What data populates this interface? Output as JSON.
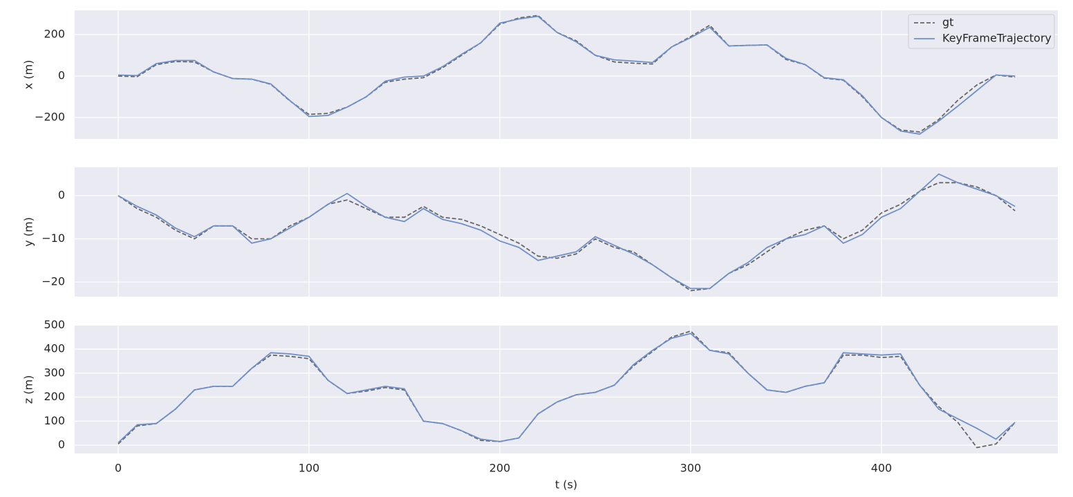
{
  "chart_data": [
    {
      "type": "line",
      "ylabel": "x (m)",
      "x": [
        0,
        10,
        20,
        30,
        40,
        50,
        60,
        70,
        80,
        90,
        100,
        110,
        120,
        130,
        140,
        150,
        160,
        170,
        180,
        190,
        200,
        210,
        220,
        230,
        240,
        250,
        260,
        270,
        280,
        290,
        300,
        310,
        320,
        330,
        340,
        350,
        360,
        370,
        380,
        390,
        400,
        410,
        420,
        430,
        440,
        450,
        460,
        470
      ],
      "series": [
        {
          "name": "gt",
          "color": "#666666",
          "linestyle": "dashed",
          "values": [
            0,
            -3,
            55,
            70,
            68,
            20,
            -12,
            -15,
            -40,
            -120,
            -185,
            -180,
            -150,
            -100,
            -30,
            -15,
            -8,
            40,
            100,
            160,
            250,
            280,
            292,
            210,
            170,
            100,
            68,
            62,
            58,
            140,
            190,
            245,
            145,
            148,
            150,
            80,
            55,
            -10,
            -20,
            -100,
            -200,
            -260,
            -270,
            -210,
            -117,
            -43,
            5,
            -5
          ]
        },
        {
          "name": "KeyFrameTrajectory",
          "color": "#6f8fc7",
          "linestyle": "solid",
          "values": [
            5,
            2,
            60,
            75,
            75,
            20,
            -12,
            -15,
            -38,
            -118,
            -195,
            -190,
            -150,
            -100,
            -25,
            -5,
            0,
            45,
            105,
            160,
            255,
            275,
            288,
            210,
            165,
            100,
            78,
            72,
            65,
            140,
            185,
            235,
            145,
            148,
            150,
            85,
            55,
            -8,
            -18,
            -95,
            -200,
            -265,
            -280,
            -217,
            -145,
            -70,
            5,
            0
          ]
        }
      ],
      "xlim": [
        -22.8,
        492.4
      ],
      "xticks": [
        0,
        100,
        200,
        300,
        400
      ],
      "ylim": [
        -303.3,
        316.7
      ],
      "yticks": [
        {
          "value": -200,
          "label": "−200"
        },
        0,
        200
      ],
      "grid": true,
      "legend": "upper right"
    },
    {
      "type": "line",
      "ylabel": "y (m)",
      "x": [
        0,
        10,
        20,
        30,
        40,
        50,
        60,
        70,
        80,
        90,
        100,
        110,
        120,
        130,
        140,
        150,
        160,
        170,
        180,
        190,
        200,
        210,
        220,
        230,
        240,
        250,
        260,
        270,
        280,
        290,
        300,
        310,
        320,
        330,
        340,
        350,
        360,
        370,
        380,
        390,
        400,
        410,
        420,
        430,
        440,
        450,
        460,
        470
      ],
      "series": [
        {
          "color": "#666666",
          "linestyle": "dashed",
          "values": [
            0,
            -3,
            -5,
            -8,
            -10,
            -7,
            -7,
            -10,
            -10,
            -7,
            -5,
            -2,
            -1,
            -3,
            -5,
            -5,
            -2.5,
            -5,
            -5.5,
            -7,
            -9,
            -11,
            -14,
            -14.5,
            -13.5,
            -10,
            -12,
            -13,
            -16,
            -19,
            -22,
            -21.5,
            -18,
            -16,
            -13,
            -10,
            -8,
            -7,
            -10,
            -8,
            -4,
            -2,
            1,
            3,
            3,
            2,
            0,
            -3.5
          ]
        },
        {
          "color": "#6f8fc7",
          "linestyle": "solid",
          "values": [
            0,
            -2.5,
            -4.5,
            -7.5,
            -9.5,
            -7,
            -7,
            -11,
            -10,
            -7.5,
            -5,
            -2,
            0.5,
            -2.5,
            -5,
            -6,
            -3,
            -5.5,
            -6.5,
            -8,
            -10.5,
            -12,
            -15,
            -14,
            -13,
            -9.5,
            -11.5,
            -13.5,
            -16,
            -19,
            -21.5,
            -21.5,
            -18,
            -15.5,
            -12,
            -10,
            -9,
            -7,
            -11,
            -9,
            -5,
            -3,
            1,
            5,
            3,
            1.5,
            0,
            -2.5
          ]
        }
      ],
      "xlim": [
        -22.8,
        492.4
      ],
      "xticks": [
        0,
        100,
        200,
        300,
        400
      ],
      "ylim": [
        -23.36,
        6.56
      ],
      "yticks": [
        {
          "value": -20,
          "label": "−20"
        },
        {
          "value": -10,
          "label": "−10"
        },
        0
      ],
      "grid": true
    },
    {
      "type": "line",
      "ylabel": "z (m)",
      "xlabel": "t (s)",
      "x": [
        0,
        10,
        20,
        30,
        40,
        50,
        60,
        70,
        80,
        90,
        100,
        110,
        120,
        130,
        140,
        150,
        160,
        170,
        180,
        190,
        200,
        210,
        220,
        230,
        240,
        250,
        260,
        270,
        280,
        290,
        300,
        310,
        320,
        330,
        340,
        350,
        360,
        370,
        380,
        390,
        400,
        410,
        420,
        430,
        440,
        450,
        460,
        470
      ],
      "series": [
        {
          "color": "#666666",
          "linestyle": "dashed",
          "values": [
            5,
            80,
            90,
            150,
            230,
            245,
            245,
            320,
            375,
            370,
            360,
            270,
            215,
            225,
            240,
            230,
            100,
            90,
            60,
            20,
            15,
            30,
            130,
            180,
            210,
            220,
            250,
            330,
            390,
            450,
            475,
            395,
            385,
            300,
            230,
            220,
            245,
            260,
            375,
            375,
            365,
            370,
            250,
            160,
            95,
            -10,
            5,
            95
          ]
        },
        {
          "color": "#6f8fc7",
          "linestyle": "solid",
          "values": [
            10,
            85,
            90,
            150,
            230,
            245,
            245,
            320,
            385,
            380,
            370,
            270,
            215,
            230,
            245,
            235,
            100,
            90,
            60,
            25,
            15,
            30,
            130,
            180,
            210,
            220,
            250,
            335,
            395,
            445,
            465,
            395,
            380,
            300,
            230,
            220,
            245,
            260,
            385,
            380,
            375,
            380,
            250,
            150,
            110,
            70,
            25,
            95
          ]
        }
      ],
      "xlim": [
        -22.8,
        492.4
      ],
      "xticks": [
        0,
        100,
        200,
        300,
        400
      ],
      "ylim": [
        -34.5,
        498
      ],
      "yticks": [
        0,
        100,
        200,
        300,
        400,
        500
      ],
      "grid": true
    }
  ]
}
